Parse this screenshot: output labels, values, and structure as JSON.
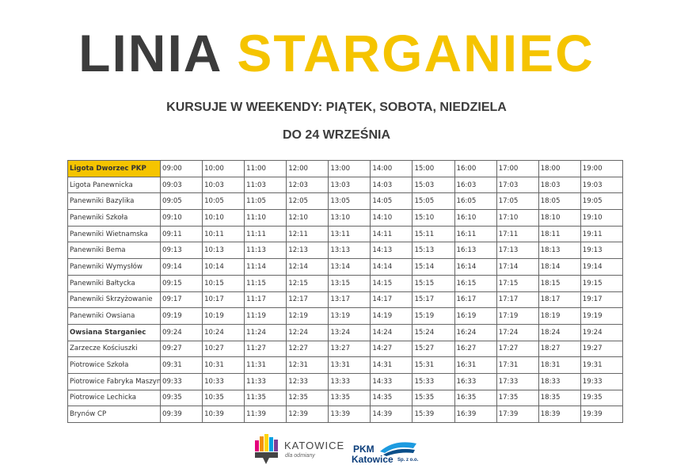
{
  "header": {
    "title_dark": "LINIA",
    "title_accent": "STARGANIEC",
    "subtitle": "KURSUJE W WEEKENDY: PIĄTEK, SOBOTA, NIEDZIELA",
    "date_note": "DO 24 WRZEŚNIA"
  },
  "table": {
    "rows": [
      [
        "Ligota Dworzec PKP",
        "09:00",
        "10:00",
        "11:00",
        "12:00",
        "13:00",
        "14:00",
        "15:00",
        "16:00",
        "17:00",
        "18:00",
        "19:00"
      ],
      [
        "Ligota Panewnicka",
        "09:03",
        "10:03",
        "11:03",
        "12:03",
        "13:03",
        "14:03",
        "15:03",
        "16:03",
        "17:03",
        "18:03",
        "19:03"
      ],
      [
        "Panewniki Bazylika",
        "09:05",
        "10:05",
        "11:05",
        "12:05",
        "13:05",
        "14:05",
        "15:05",
        "16:05",
        "17:05",
        "18:05",
        "19:05"
      ],
      [
        "Panewniki Szkoła",
        "09:10",
        "10:10",
        "11:10",
        "12:10",
        "13:10",
        "14:10",
        "15:10",
        "16:10",
        "17:10",
        "18:10",
        "19:10"
      ],
      [
        "Panewniki Wietnamska",
        "09:11",
        "10:11",
        "11:11",
        "12:11",
        "13:11",
        "14:11",
        "15:11",
        "16:11",
        "17:11",
        "18:11",
        "19:11"
      ],
      [
        "Panewniki Bema",
        "09:13",
        "10:13",
        "11:13",
        "12:13",
        "13:13",
        "14:13",
        "15:13",
        "16:13",
        "17:13",
        "18:13",
        "19:13"
      ],
      [
        "Panewniki Wymysłów",
        "09:14",
        "10:14",
        "11:14",
        "12:14",
        "13:14",
        "14:14",
        "15:14",
        "16:14",
        "17:14",
        "18:14",
        "19:14"
      ],
      [
        "Panewniki Bałtycka",
        "09:15",
        "10:15",
        "11:15",
        "12:15",
        "13:15",
        "14:15",
        "15:15",
        "16:15",
        "17:15",
        "18:15",
        "19:15"
      ],
      [
        "Panewniki Skrzyżowanie",
        "09:17",
        "10:17",
        "11:17",
        "12:17",
        "13:17",
        "14:17",
        "15:17",
        "16:17",
        "17:17",
        "18:17",
        "19:17"
      ],
      [
        "Panewniki Owsiana",
        "09:19",
        "10:19",
        "11:19",
        "12:19",
        "13:19",
        "14:19",
        "15:19",
        "16:19",
        "17:19",
        "18:19",
        "19:19"
      ],
      [
        "Owsiana Starganiec",
        "09:24",
        "10:24",
        "11:24",
        "12:24",
        "13:24",
        "14:24",
        "15:24",
        "16:24",
        "17:24",
        "18:24",
        "19:24"
      ],
      [
        "Zarzecze Kościuszki",
        "09:27",
        "10:27",
        "11:27",
        "12:27",
        "13:27",
        "14:27",
        "15:27",
        "16:27",
        "17:27",
        "18:27",
        "19:27"
      ],
      [
        "Piotrowice Szkoła",
        "09:31",
        "10:31",
        "11:31",
        "12:31",
        "13:31",
        "14:31",
        "15:31",
        "16:31",
        "17:31",
        "18:31",
        "19:31"
      ],
      [
        "Piotrowice Fabryka Maszyn",
        "09:33",
        "10:33",
        "11:33",
        "12:33",
        "13:33",
        "14:33",
        "15:33",
        "16:33",
        "17:33",
        "18:33",
        "19:33"
      ],
      [
        "Piotrowice Lechicka",
        "09:35",
        "10:35",
        "11:35",
        "12:35",
        "13:35",
        "14:35",
        "15:35",
        "16:35",
        "17:35",
        "18:35",
        "19:35"
      ],
      [
        "Brynów CP",
        "09:39",
        "10:39",
        "11:39",
        "12:39",
        "13:39",
        "14:39",
        "15:39",
        "16:39",
        "17:39",
        "18:39",
        "19:39"
      ]
    ]
  },
  "footer": {
    "katowice_name": "KATOWICE",
    "katowice_tagline": "dla odmiany",
    "pkm_name": "PKM",
    "pkm_city": "Katowice",
    "pkm_suffix": "Sp. z o.o."
  }
}
